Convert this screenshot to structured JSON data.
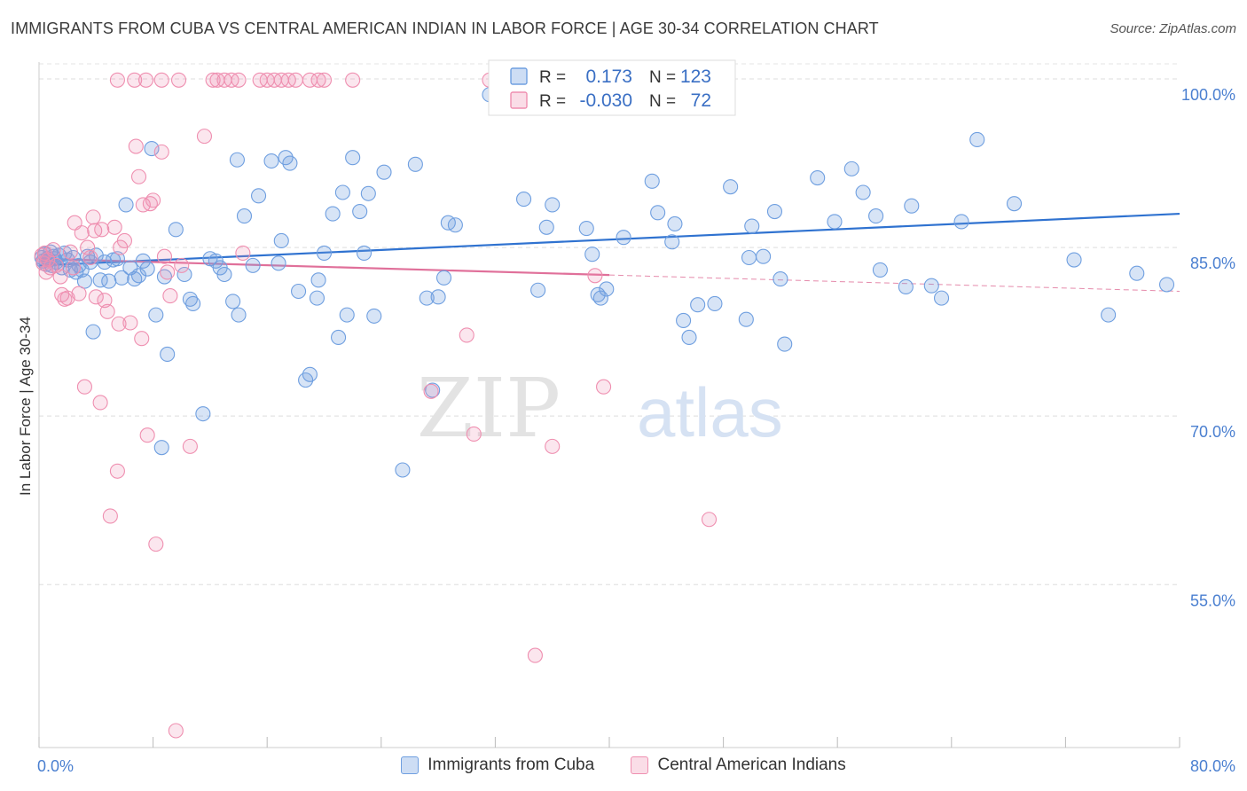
{
  "title": "IMMIGRANTS FROM CUBA VS CENTRAL AMERICAN INDIAN IN LABOR FORCE | AGE 30-34 CORRELATION CHART",
  "source": "Source: ZipAtlas.com",
  "watermark": {
    "zip": "ZIP",
    "atlas": "atlas"
  },
  "chart_data": {
    "type": "scatter",
    "ylabel": "In Labor Force | Age 30-34",
    "xlabel": "",
    "xlim": [
      0,
      80
    ],
    "ylim": [
      40.5,
      101.5
    ],
    "x_tick_labels": [
      {
        "value": 0,
        "label": "0.0%"
      },
      {
        "value": 80,
        "label": "80.0%"
      }
    ],
    "y_tick_labels": [
      {
        "value": 100,
        "label": "100.0%"
      },
      {
        "value": 85,
        "label": "85.0%"
      },
      {
        "value": 70,
        "label": "70.0%"
      },
      {
        "value": 55,
        "label": "55.0%"
      }
    ],
    "grid": true,
    "legend_stats": [
      {
        "r_label": "R =",
        "r": "0.173",
        "n_label": "N =",
        "n": "123",
        "color": "#6f9fe0"
      },
      {
        "r_label": "R =",
        "r": "-0.030",
        "n_label": "N =",
        "n": "72",
        "color": "#ef8fb0"
      }
    ],
    "series": [
      {
        "name": "Immigrants from Cuba",
        "color": "#6f9fe0",
        "fill": "rgba(111,159,224,0.28)",
        "trend": {
          "x": [
            0,
            80
          ],
          "y": [
            83.4,
            88.0
          ]
        },
        "points": [
          [
            0.2,
            84.1
          ],
          [
            0.3,
            83.8
          ],
          [
            0.4,
            84.4
          ],
          [
            0.5,
            83.5
          ],
          [
            0.6,
            84.0
          ],
          [
            0.7,
            83.9
          ],
          [
            0.8,
            84.6
          ],
          [
            0.9,
            83.4
          ],
          [
            1.0,
            84.2
          ],
          [
            1.1,
            84.0
          ],
          [
            1.2,
            83.7
          ],
          [
            1.4,
            84.3
          ],
          [
            1.6,
            83.2
          ],
          [
            1.8,
            84.5
          ],
          [
            2.0,
            83.9
          ],
          [
            2.2,
            83.0
          ],
          [
            2.4,
            84.1
          ],
          [
            2.6,
            82.8
          ],
          [
            2.8,
            83.4
          ],
          [
            3.0,
            83.0
          ],
          [
            3.2,
            82.0
          ],
          [
            3.4,
            84.2
          ],
          [
            3.6,
            83.7
          ],
          [
            3.8,
            77.5
          ],
          [
            4.0,
            84.3
          ],
          [
            4.3,
            82.1
          ],
          [
            4.6,
            83.7
          ],
          [
            4.9,
            82.0
          ],
          [
            5.2,
            83.9
          ],
          [
            5.5,
            84.0
          ],
          [
            5.8,
            82.3
          ],
          [
            6.1,
            88.8
          ],
          [
            6.4,
            83.2
          ],
          [
            6.7,
            82.2
          ],
          [
            7.0,
            82.5
          ],
          [
            7.3,
            83.8
          ],
          [
            7.6,
            83.1
          ],
          [
            7.9,
            93.8
          ],
          [
            8.2,
            79.0
          ],
          [
            8.6,
            67.2
          ],
          [
            8.8,
            82.4
          ],
          [
            9.0,
            75.5
          ],
          [
            9.6,
            86.6
          ],
          [
            10.2,
            82.6
          ],
          [
            10.6,
            80.4
          ],
          [
            10.8,
            80.0
          ],
          [
            11.5,
            70.2
          ],
          [
            12.0,
            84.0
          ],
          [
            12.4,
            83.8
          ],
          [
            12.7,
            83.2
          ],
          [
            13.0,
            82.6
          ],
          [
            13.6,
            80.2
          ],
          [
            13.9,
            92.8
          ],
          [
            14.0,
            79.0
          ],
          [
            14.4,
            87.8
          ],
          [
            15.0,
            83.4
          ],
          [
            15.4,
            89.6
          ],
          [
            16.3,
            92.7
          ],
          [
            16.8,
            83.6
          ],
          [
            17.0,
            85.6
          ],
          [
            17.3,
            93.0
          ],
          [
            17.6,
            92.5
          ],
          [
            18.2,
            81.1
          ],
          [
            18.7,
            73.2
          ],
          [
            19.0,
            73.7
          ],
          [
            19.5,
            80.5
          ],
          [
            19.6,
            82.1
          ],
          [
            20.0,
            84.5
          ],
          [
            20.6,
            88.0
          ],
          [
            21.0,
            77.0
          ],
          [
            21.3,
            89.9
          ],
          [
            21.6,
            79.0
          ],
          [
            22.0,
            93.0
          ],
          [
            22.5,
            88.2
          ],
          [
            22.8,
            84.5
          ],
          [
            23.1,
            89.8
          ],
          [
            23.5,
            78.9
          ],
          [
            24.2,
            91.7
          ],
          [
            25.5,
            65.2
          ],
          [
            26.4,
            92.4
          ],
          [
            27.2,
            80.5
          ],
          [
            27.6,
            72.3
          ],
          [
            28.0,
            80.6
          ],
          [
            28.4,
            82.3
          ],
          [
            28.7,
            87.2
          ],
          [
            29.2,
            87.0
          ],
          [
            31.6,
            98.6
          ],
          [
            32.6,
            100.0
          ],
          [
            34.0,
            89.3
          ],
          [
            35.0,
            81.2
          ],
          [
            35.6,
            86.8
          ],
          [
            36.0,
            88.8
          ],
          [
            36.5,
            99.9
          ],
          [
            37.2,
            100.0
          ],
          [
            38.4,
            86.7
          ],
          [
            38.8,
            84.4
          ],
          [
            39.2,
            80.8
          ],
          [
            39.4,
            80.5
          ],
          [
            39.8,
            81.3
          ],
          [
            41.0,
            85.9
          ],
          [
            43.0,
            90.9
          ],
          [
            43.4,
            88.1
          ],
          [
            44.4,
            85.5
          ],
          [
            44.6,
            87.1
          ],
          [
            45.2,
            78.5
          ],
          [
            45.6,
            77.0
          ],
          [
            46.2,
            79.9
          ],
          [
            47.4,
            80.0
          ],
          [
            48.5,
            90.4
          ],
          [
            49.6,
            78.6
          ],
          [
            49.8,
            84.1
          ],
          [
            50.0,
            86.9
          ],
          [
            50.8,
            84.2
          ],
          [
            51.6,
            88.2
          ],
          [
            52.0,
            82.2
          ],
          [
            52.3,
            76.4
          ],
          [
            54.6,
            91.2
          ],
          [
            55.8,
            87.3
          ],
          [
            57.0,
            92.0
          ],
          [
            57.8,
            89.9
          ],
          [
            58.7,
            87.8
          ],
          [
            59.0,
            83.0
          ],
          [
            60.8,
            81.5
          ],
          [
            61.2,
            88.7
          ],
          [
            62.6,
            81.6
          ],
          [
            63.3,
            80.5
          ],
          [
            64.7,
            87.3
          ],
          [
            65.8,
            94.6
          ],
          [
            68.4,
            88.9
          ],
          [
            72.6,
            83.9
          ],
          [
            75.0,
            79.0
          ],
          [
            77.0,
            82.7
          ],
          [
            79.1,
            81.7
          ]
        ]
      },
      {
        "name": "Central American Indians",
        "color": "#ef8fb0",
        "fill": "rgba(239,143,176,0.22)",
        "trend": {
          "x": [
            0,
            80
          ],
          "y": [
            84.0,
            81.1
          ]
        },
        "trend_solid_until": 40,
        "points": [
          [
            0.2,
            84.3
          ],
          [
            0.3,
            83.6
          ],
          [
            0.4,
            84.5
          ],
          [
            0.5,
            82.8
          ],
          [
            0.6,
            83.9
          ],
          [
            0.8,
            83.2
          ],
          [
            1.0,
            84.8
          ],
          [
            1.2,
            83.4
          ],
          [
            1.5,
            82.4
          ],
          [
            1.6,
            80.8
          ],
          [
            1.8,
            80.4
          ],
          [
            2.0,
            80.5
          ],
          [
            2.2,
            84.6
          ],
          [
            2.4,
            83.2
          ],
          [
            2.5,
            87.2
          ],
          [
            2.8,
            80.9
          ],
          [
            3.0,
            86.3
          ],
          [
            3.2,
            72.6
          ],
          [
            3.4,
            85.0
          ],
          [
            3.6,
            84.1
          ],
          [
            3.8,
            87.7
          ],
          [
            3.9,
            86.5
          ],
          [
            4.0,
            80.6
          ],
          [
            4.3,
            71.2
          ],
          [
            4.4,
            86.6
          ],
          [
            4.6,
            80.3
          ],
          [
            4.8,
            79.3
          ],
          [
            5.0,
            61.1
          ],
          [
            5.3,
            86.8
          ],
          [
            5.5,
            65.1
          ],
          [
            5.6,
            78.2
          ],
          [
            5.7,
            85.0
          ],
          [
            6.0,
            85.6
          ],
          [
            6.4,
            78.3
          ],
          [
            6.8,
            94.0
          ],
          [
            7.0,
            91.3
          ],
          [
            7.2,
            76.9
          ],
          [
            7.3,
            88.8
          ],
          [
            7.6,
            68.3
          ],
          [
            7.8,
            88.9
          ],
          [
            8.0,
            89.2
          ],
          [
            8.2,
            58.6
          ],
          [
            8.6,
            93.5
          ],
          [
            8.8,
            84.2
          ],
          [
            9.0,
            82.8
          ],
          [
            9.2,
            80.7
          ],
          [
            9.6,
            42.0
          ],
          [
            10.0,
            83.4
          ],
          [
            10.6,
            67.3
          ],
          [
            11.6,
            94.9
          ],
          [
            12.2,
            99.9
          ],
          [
            12.5,
            99.9
          ],
          [
            13.0,
            99.9
          ],
          [
            13.5,
            99.9
          ],
          [
            14.0,
            99.9
          ],
          [
            14.3,
            84.5
          ],
          [
            15.5,
            99.9
          ],
          [
            16.0,
            99.9
          ],
          [
            16.5,
            99.9
          ],
          [
            17.0,
            99.9
          ],
          [
            17.5,
            99.9
          ],
          [
            18.0,
            99.9
          ],
          [
            19.0,
            99.9
          ],
          [
            19.6,
            99.9
          ],
          [
            20.0,
            99.9
          ],
          [
            22.0,
            99.9
          ],
          [
            27.5,
            72.2
          ],
          [
            30.0,
            77.2
          ],
          [
            30.5,
            68.4
          ],
          [
            31.6,
            99.9
          ],
          [
            32.5,
            99.9
          ],
          [
            34.8,
            48.7
          ],
          [
            36.0,
            67.3
          ],
          [
            39.0,
            82.5
          ],
          [
            39.6,
            72.6
          ],
          [
            47.0,
            60.8
          ],
          [
            5.5,
            99.9
          ],
          [
            6.7,
            99.9
          ],
          [
            7.5,
            99.9
          ],
          [
            8.6,
            99.9
          ],
          [
            9.8,
            99.9
          ]
        ]
      }
    ]
  }
}
